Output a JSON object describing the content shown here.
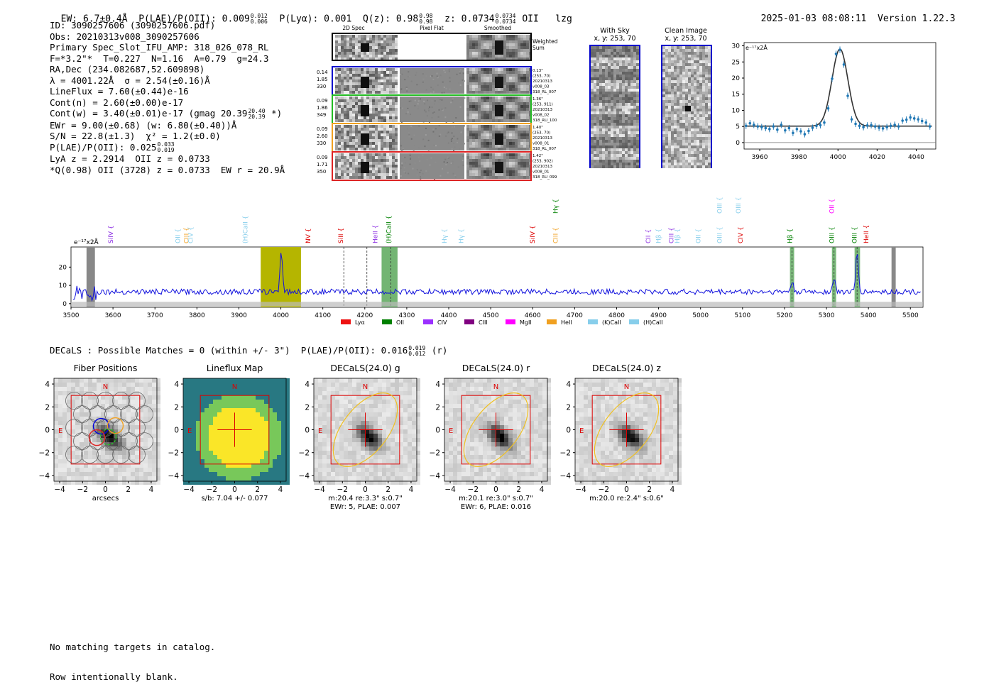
{
  "header": {
    "ew": "EW: 6.7±0.4Å",
    "plae_label": "P(LAE)/P(OII): 0.009",
    "plae_hi": "0.012",
    "plae_lo": "0.006",
    "plya": "P(Lyα): 0.001",
    "q_label": "Q(z): 0.98",
    "q_hi": "0.98",
    "q_lo": "0.98",
    "z_label": "z: 0.0734",
    "z_hi": "0.0734",
    "z_lo": "0.0734",
    "z_line": "OII",
    "flag": "lzg",
    "timestamp": "2025-01-03 08:08:11",
    "version": "Version 1.22.3"
  },
  "info": {
    "id": "ID: 3090257606 (3090257606.pdf)",
    "obs": "Obs: 20210313v008_3090257606",
    "primary": "Primary Spec_Slot_IFU_AMP: 318_026_078_RL",
    "f_line": "F=*3.2\"*  T=0.227  N=1.16  A=0.79  g=24.3",
    "radec": "RA,Dec (234.082687,52.609898)",
    "lambda": "λ = 4001.22Å  σ = 2.54(±0.16)Å",
    "lineflux": "LineFlux = 7.60(±0.44)e-16",
    "contn": "Cont(n) = 2.60(±0.00)e-17",
    "contw": "Cont(w) = 3.40(±0.01)e-17 (gmag 20.39",
    "contw_hi": "20.40",
    "contw_lo": "20.39",
    "contw_end": "*)",
    "ewr": "EWr = 9.00(±0.68) (w: 6.80(±0.40))Å",
    "sn": "S/N = 22.8(±1.3)  χ² = 1.2(±0.0)",
    "plae": "P(LAE)/P(OII): 0.025",
    "plae_hi": "0.033",
    "plae_lo": "0.019",
    "lya": "LyA z = 2.2914  OII z = 0.0733",
    "q": "*Q(0.98) OII (3728) z = 0.0733  EW r = 20.9Å"
  },
  "cutouts": {
    "col_labels": [
      "2D Spec",
      "Pixel Flat",
      "Smoothed"
    ],
    "weighted": "Weighted Sum",
    "rows": [
      {
        "left": [
          "0.14",
          "1.85",
          "330"
        ],
        "right": [
          "0.13\"",
          "(253, 70)",
          "20210313",
          "v008_03",
          "318_RL_007"
        ]
      },
      {
        "left": [
          "0.09",
          "1.86",
          "349"
        ],
        "right": [
          "1.36\"",
          "(253, 911)",
          "20210313",
          "v008_02",
          "318_RU_100"
        ]
      },
      {
        "left": [
          "0.09",
          "2.60",
          "330"
        ],
        "right": [
          "1.40\"",
          "(253, 70)",
          "20210313",
          "v008_01",
          "318_RL_007"
        ]
      },
      {
        "left": [
          "0.09",
          "1.71",
          "350"
        ],
        "right": [
          "1.42\"",
          "(253, 902)",
          "20210313",
          "v008_01",
          "318_RU_099"
        ]
      }
    ],
    "row_colors": [
      "#0000cc",
      "#22bb22",
      "#f0a020",
      "#dd2222"
    ]
  },
  "sky": {
    "with_sky_title": "With Sky",
    "with_sky_xy": "x, y: 253, 70",
    "clean_title": "Clean Image",
    "clean_xy": "x, y: 253, 70"
  },
  "chart_data": [
    {
      "type": "line",
      "title": "",
      "ylabel": "e⁻¹⁷x2Å",
      "xlim": [
        3952,
        4050
      ],
      "ylim": [
        -2,
        31
      ],
      "xticks": [
        3960,
        3980,
        4000,
        4020,
        4040
      ],
      "yticks": [
        0,
        5,
        10,
        15,
        20,
        25,
        30
      ],
      "fit": {
        "center": 4001,
        "sigma": 2.54,
        "peak": 29,
        "cont": 5.1
      },
      "x": [
        3953,
        3955,
        3957,
        3959,
        3961,
        3963,
        3965,
        3967,
        3969,
        3971,
        3973,
        3975,
        3977,
        3979,
        3981,
        3983,
        3985,
        3987,
        3989,
        3991,
        3993,
        3995,
        3997,
        3999,
        4001,
        4003,
        4005,
        4007,
        4009,
        4011,
        4013,
        4015,
        4017,
        4019,
        4021,
        4023,
        4025,
        4027,
        4029,
        4031,
        4033,
        4035,
        4037,
        4039,
        4041,
        4043,
        4045,
        4047
      ],
      "y": [
        5.2,
        6.0,
        5.5,
        5.0,
        4.8,
        4.5,
        4.2,
        5.0,
        4.0,
        5.5,
        3.8,
        4.5,
        3.0,
        4.2,
        3.5,
        2.6,
        3.6,
        4.6,
        5.2,
        5.4,
        6.2,
        10.6,
        19.8,
        27.5,
        28.8,
        24.2,
        14.5,
        7.2,
        5.8,
        5.2,
        4.8,
        5.3,
        5.4,
        5.0,
        4.6,
        4.4,
        4.8,
        5.2,
        5.5,
        5.0,
        6.8,
        7.1,
        7.8,
        7.5,
        7.2,
        6.7,
        6.2,
        5.0
      ]
    },
    {
      "type": "line",
      "ylabel": "e⁻¹⁷x2Å",
      "xlim": [
        3500,
        5530
      ],
      "ylim": [
        -2,
        31
      ],
      "xticks": [
        3500,
        3600,
        3700,
        3800,
        3900,
        4000,
        4100,
        4200,
        4300,
        4400,
        4500,
        4600,
        4700,
        4800,
        4900,
        5000,
        5100,
        5200,
        5300,
        5400,
        5500
      ],
      "yticks": [
        0,
        10,
        20
      ],
      "lines": [
        {
          "name": "SiIV",
          "wave": 3600,
          "color": "#8a2be2"
        },
        {
          "name": "OII",
          "wave": 3760,
          "color": "#87ceeb"
        },
        {
          "name": "CIII",
          "wave": 3780,
          "color": "#f0a020"
        },
        {
          "name": "CIV",
          "wave": 3790,
          "color": "#87ceeb"
        },
        {
          "name": "(H)CaII",
          "wave": 3920,
          "color": "#87ceeb"
        },
        {
          "name": "NV",
          "wave": 4070,
          "color": "#dd0000"
        },
        {
          "name": "SiII",
          "wave": 4148,
          "color": "#dd0000"
        },
        {
          "name": "HeII",
          "wave": 4230,
          "color": "#8a2be2"
        },
        {
          "name": "(H)CaII",
          "wave": 4262,
          "color": "#008000"
        },
        {
          "name": "Hγ",
          "wave": 4395,
          "color": "#87ceeb"
        },
        {
          "name": "Hγ",
          "wave": 4435,
          "color": "#87ceeb"
        },
        {
          "name": "SiIV",
          "wave": 4605,
          "color": "#dd0000"
        },
        {
          "name": "CIII",
          "wave": 4660,
          "color": "#f0a020"
        },
        {
          "name": "Hγ",
          "wave": 4660,
          "color": "#008000"
        },
        {
          "name": "CII",
          "wave": 4880,
          "color": "#8a2be2"
        },
        {
          "name": "Hβ",
          "wave": 4905,
          "color": "#87ceeb"
        },
        {
          "name": "CIII",
          "wave": 4935,
          "color": "#8a2be2"
        },
        {
          "name": "Hβ",
          "wave": 4950,
          "color": "#87ceeb"
        },
        {
          "name": "OII",
          "wave": 5000,
          "color": "#87ceeb"
        },
        {
          "name": "OIII",
          "wave": 5050,
          "color": "#87ceeb"
        },
        {
          "name": "OIII",
          "wave": 5050,
          "color": "#87ceeb"
        },
        {
          "name": "CIV",
          "wave": 5100,
          "color": "#dd0000"
        },
        {
          "name": "OIII",
          "wave": 5095,
          "color": "#87ceeb"
        },
        {
          "name": "Hβ",
          "wave": 5218,
          "color": "#008000"
        },
        {
          "name": "OIII",
          "wave": 5318,
          "color": "#008000"
        },
        {
          "name": "OII",
          "wave": 5318,
          "color": "#ff00ff"
        },
        {
          "name": "OIII",
          "wave": 5372,
          "color": "#008000"
        },
        {
          "name": "HeII",
          "wave": 5400,
          "color": "#dd0000"
        }
      ],
      "legend": [
        {
          "label": "Lyα",
          "color": "#ee1111"
        },
        {
          "label": "OII",
          "color": "#008000"
        },
        {
          "label": "CIV",
          "color": "#9b30ff"
        },
        {
          "label": "CIII",
          "color": "#800080"
        },
        {
          "label": "MgII",
          "color": "#ff00ff"
        },
        {
          "label": "HeII",
          "color": "#f0a020"
        },
        {
          "label": "(K)CaII",
          "color": "#87ceeb"
        },
        {
          "label": "(H)CaII",
          "color": "#87ceeb"
        }
      ],
      "emission_peaks": [
        {
          "wave": 4001,
          "height": 29
        },
        {
          "wave": 5218,
          "height": 12
        },
        {
          "wave": 5318,
          "height": 14
        },
        {
          "wave": 5373,
          "height": 28
        }
      ],
      "continuum": 6.5
    }
  ],
  "decals": {
    "heading": "DECaLS : Possible Matches = 0 (within +/- 3\")  P(LAE)/P(OII): 0.016",
    "heading_hi": "0.019",
    "heading_lo": "0.012",
    "heading_end": "(r)",
    "north": "N",
    "east": "E",
    "panels": [
      {
        "title": "Fiber Positions",
        "caption": [
          "arcsecs"
        ]
      },
      {
        "title": "Lineflux Map",
        "caption": [
          "s/b: 7.04 +/- 0.077"
        ]
      },
      {
        "title": "DECaLS(24.0) g",
        "caption": [
          "m:20.4  re:3.3\"  s:0.7\"",
          "EWr: 5, PLAE: 0.007"
        ]
      },
      {
        "title": "DECaLS(24.0) r",
        "caption": [
          "m:20.1  re:3.0\"  s:0.7\"",
          "EWr: 6, PLAE: 0.016"
        ]
      },
      {
        "title": "DECaLS(24.0) z",
        "caption": [
          "m:20.0  re:2.4\"  s:0.6\""
        ]
      }
    ],
    "ticks": [
      "4",
      "2",
      "0",
      "−2",
      "−4"
    ]
  },
  "footer": {
    "line1": "No matching targets in catalog.",
    "line2": "Row intentionally blank."
  }
}
